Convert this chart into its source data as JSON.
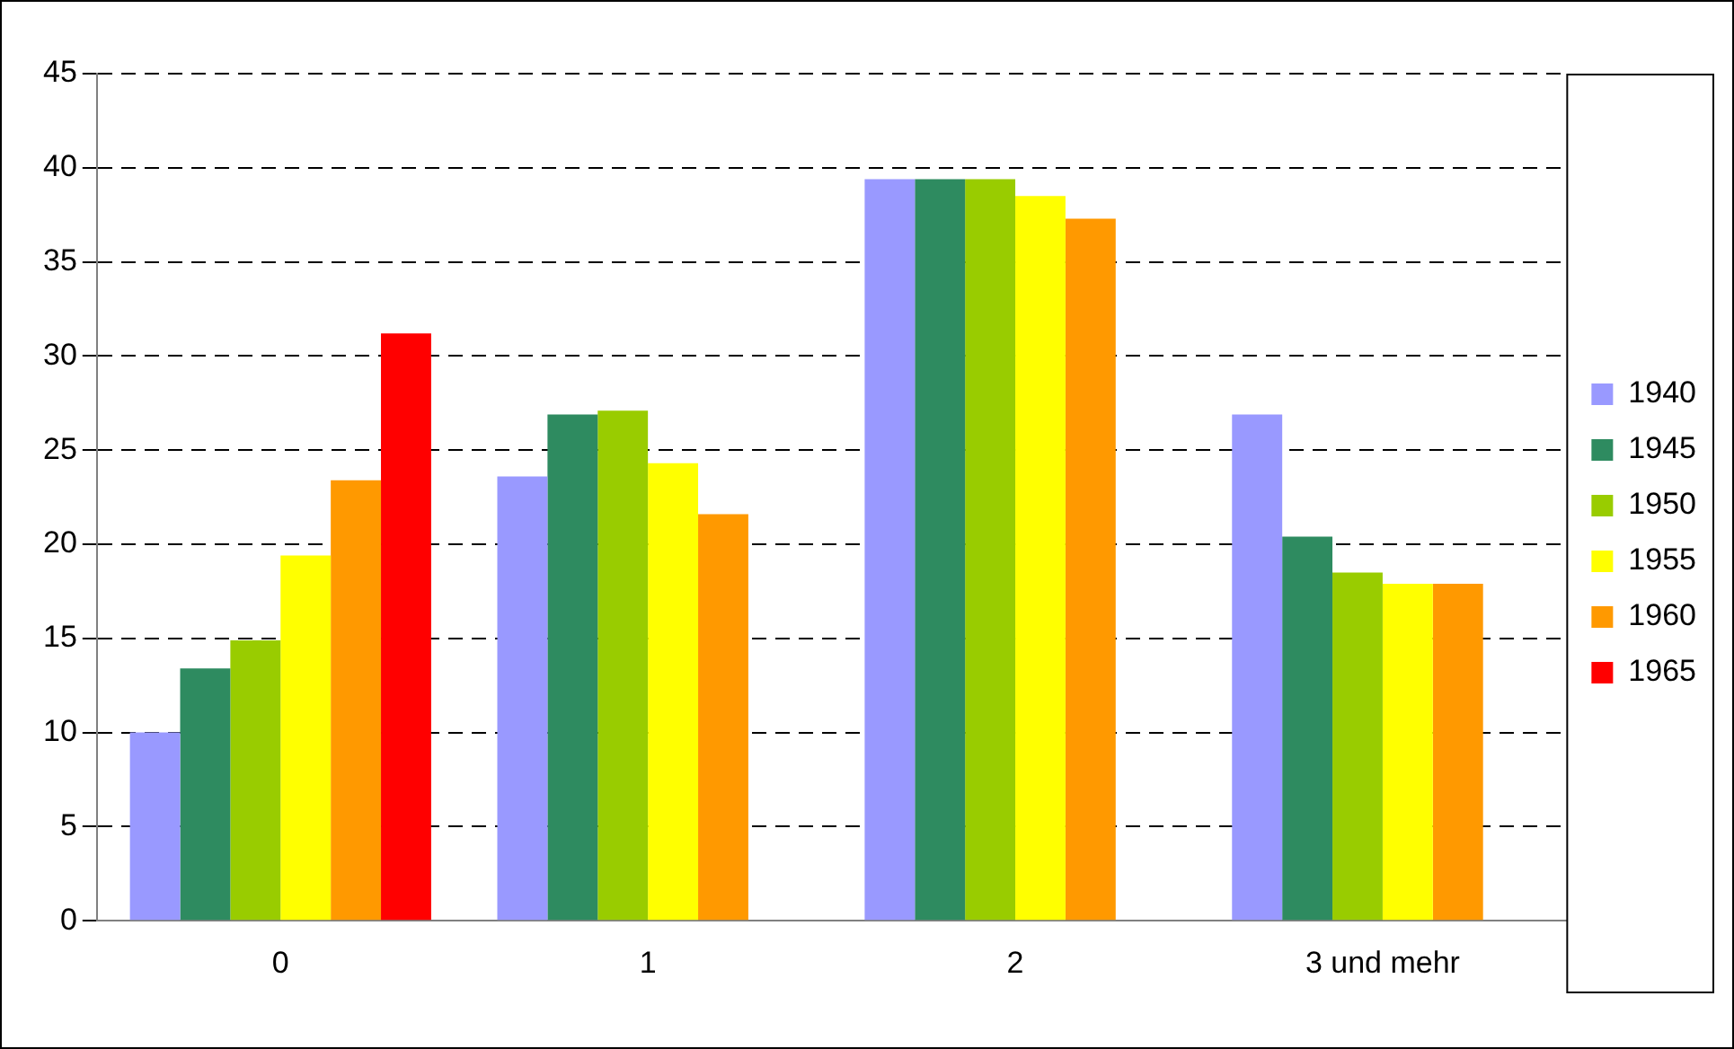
{
  "chart_data": {
    "type": "bar",
    "categories": [
      "0",
      "1",
      "2",
      "3 und mehr"
    ],
    "series": [
      {
        "name": "1940",
        "color": "#9999ff",
        "values": [
          10.0,
          23.6,
          39.4,
          26.9
        ]
      },
      {
        "name": "1945",
        "color": "#2e8b60",
        "values": [
          13.4,
          26.9,
          39.4,
          20.4
        ]
      },
      {
        "name": "1950",
        "color": "#99cc00",
        "values": [
          14.9,
          27.1,
          39.4,
          18.5
        ]
      },
      {
        "name": "1955",
        "color": "#ffff00",
        "values": [
          19.4,
          24.3,
          38.5,
          17.9
        ]
      },
      {
        "name": "1960",
        "color": "#ff9900",
        "values": [
          23.4,
          21.6,
          37.3,
          17.9
        ]
      },
      {
        "name": "1965",
        "color": "#ff0000",
        "values": [
          31.2,
          null,
          null,
          null
        ]
      }
    ],
    "ylim": [
      0,
      45
    ],
    "yticks": [
      0,
      5,
      10,
      15,
      20,
      25,
      30,
      35,
      40,
      45
    ],
    "grid": "y",
    "legend": "right"
  }
}
